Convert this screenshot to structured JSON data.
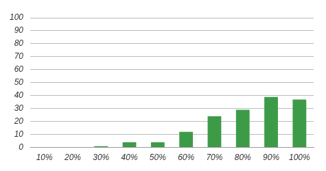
{
  "chart_data": {
    "type": "bar",
    "categories": [
      "10%",
      "20%",
      "30%",
      "40%",
      "50%",
      "60%",
      "70%",
      "80%",
      "90%",
      "100%"
    ],
    "values": [
      0,
      0,
      1,
      4,
      4,
      12,
      24,
      29,
      39,
      37
    ],
    "color": "#3d9b48",
    "ylim": [
      0,
      100
    ],
    "yticks": [
      0,
      10,
      20,
      30,
      40,
      50,
      60,
      70,
      80,
      90,
      100
    ],
    "grid": true
  }
}
